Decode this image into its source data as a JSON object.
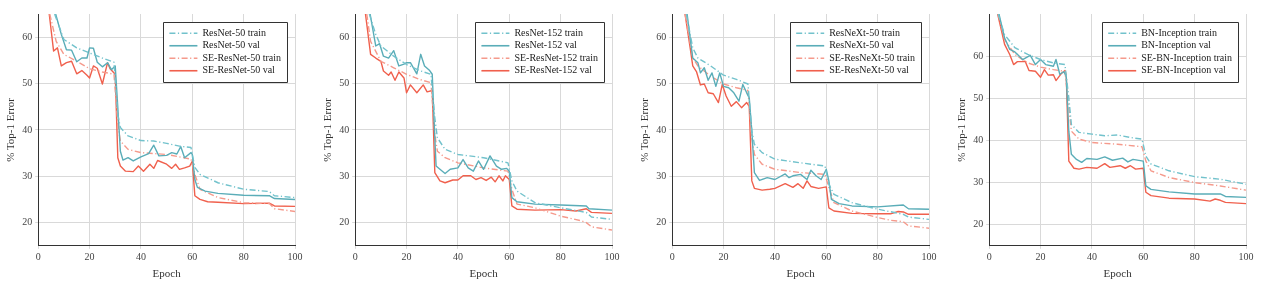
{
  "chart_data": [
    {
      "type": "line",
      "xlabel": "Epoch",
      "ylabel": "% Top-1 Error",
      "xlim": [
        0,
        100
      ],
      "xticks": [
        0,
        20,
        40,
        60,
        80,
        100
      ],
      "ylim": [
        15,
        65
      ],
      "yticks": [
        20,
        30,
        40,
        50,
        60
      ],
      "grid": true,
      "legend": "top right",
      "marker": "none",
      "series": [
        {
          "name": "ResNet-50 train",
          "color": "#72c2cc",
          "line_style": "dashed",
          "x": [
            6.4,
            10,
            15,
            20,
            25,
            29.5,
            31,
            32,
            35,
            40,
            45,
            50,
            55,
            59.5,
            61,
            63,
            70,
            80,
            90,
            92,
            100
          ],
          "values": [
            65,
            59.5,
            57.7,
            56.6,
            55.5,
            54.6,
            43.3,
            40.5,
            38.7,
            37.7,
            37.6,
            37.1,
            36.5,
            36.2,
            31.9,
            30.4,
            28.6,
            27.2,
            26.7,
            25.8,
            25.4
          ]
        },
        {
          "name": "ResNet-50 val",
          "color": "#5aadb8",
          "line_style": "solid",
          "x": [
            6.8,
            9,
            11,
            13,
            15,
            17,
            19,
            20,
            21.5,
            23,
            25,
            27,
            28.5,
            30,
            31,
            32,
            33,
            35,
            37,
            40,
            43,
            45,
            47,
            50,
            52,
            54,
            55.5,
            57,
            59.5,
            60,
            61,
            62,
            65,
            70,
            80,
            90,
            92,
            100
          ],
          "values": [
            65,
            60.6,
            57.3,
            57.2,
            54.7,
            55.5,
            55.5,
            57.7,
            57.6,
            54.6,
            53.6,
            54.5,
            53,
            53.8,
            44.8,
            35.4,
            33.5,
            34,
            33.3,
            34.2,
            34.9,
            36.7,
            34.4,
            34.5,
            35.1,
            34.8,
            36.4,
            34,
            35.1,
            34.7,
            29.3,
            27.6,
            26.8,
            26.3,
            25.9,
            25.8,
            25.2,
            25
          ]
        },
        {
          "name": "SE-ResNet-50 train",
          "color": "#f59a8c",
          "line_style": "dashed",
          "x": [
            4.5,
            7,
            10,
            15,
            20,
            25,
            29.5,
            31,
            32,
            35,
            40,
            50,
            59.5,
            61,
            63,
            70,
            80,
            90,
            92,
            100
          ],
          "values": [
            65,
            59.1,
            56.3,
            54.8,
            53.2,
            52.5,
            52,
            41.2,
            37.6,
            35.8,
            35.1,
            34.7,
            33.7,
            30.4,
            27.2,
            25.4,
            24.3,
            24.1,
            23,
            22.4
          ]
        },
        {
          "name": "SE-ResNet-50 val",
          "color": "#f0604d",
          "line_style": "solid",
          "x": [
            4.3,
            6,
            7.5,
            9,
            11,
            13,
            15,
            17,
            19,
            20,
            21.5,
            23,
            25,
            27,
            28,
            30,
            31,
            32,
            34,
            37,
            39,
            41,
            43.5,
            45,
            46.5,
            50,
            52,
            53.5,
            55,
            57,
            59,
            60,
            61,
            63,
            66,
            70,
            80,
            90,
            92,
            100
          ],
          "values": [
            65,
            57,
            57.7,
            53.8,
            54.5,
            54.8,
            52.1,
            52.8,
            51.8,
            51.2,
            53.8,
            53.3,
            49.9,
            54.5,
            53.2,
            52,
            34,
            32.2,
            31.1,
            31,
            32.2,
            31.1,
            32.6,
            31.7,
            33.4,
            32.6,
            31.7,
            32.6,
            31.5,
            31.8,
            32.2,
            33.2,
            25.8,
            25,
            24.5,
            24.4,
            24.1,
            24.2,
            23.6,
            23.5
          ]
        }
      ]
    },
    {
      "type": "line",
      "xlabel": "Epoch",
      "ylabel": "% Top-1 Error",
      "xlim": [
        0,
        100
      ],
      "xticks": [
        0,
        20,
        40,
        60,
        80,
        100
      ],
      "ylim": [
        15,
        65
      ],
      "yticks": [
        20,
        30,
        40,
        50,
        60
      ],
      "grid": true,
      "legend": "top right",
      "marker": "none",
      "series": [
        {
          "name": "ResNet-152 train",
          "color": "#72c2cc",
          "line_style": "dashed",
          "x": [
            5.5,
            8,
            10,
            15,
            20,
            25,
            29.5,
            31,
            32,
            35,
            40,
            50,
            59.5,
            61,
            63,
            70,
            80,
            90,
            92,
            100
          ],
          "values": [
            65,
            60.6,
            58.1,
            55.9,
            54.1,
            52.8,
            52,
            42.6,
            38.3,
            35.8,
            34.7,
            34,
            32.9,
            29,
            26.8,
            24.3,
            23.2,
            22.2,
            21.2,
            20.7
          ]
        },
        {
          "name": "ResNet-152 val",
          "color": "#5aadb8",
          "line_style": "solid",
          "x": [
            5.8,
            8,
            9.5,
            11,
            13,
            15,
            17,
            19,
            20,
            21.5,
            24,
            25.5,
            27,
            29,
            30,
            31,
            31.5,
            33,
            35,
            37,
            40,
            42,
            44,
            46,
            48,
            50,
            52.5,
            55,
            57,
            59,
            60,
            61,
            63,
            70,
            80,
            90,
            91,
            100
          ],
          "values": [
            65,
            58.1,
            58.6,
            55.9,
            55.5,
            57.1,
            53.8,
            54.2,
            54.5,
            54.5,
            52.1,
            56.3,
            53.8,
            52.8,
            52,
            38.3,
            32.2,
            31.5,
            30.6,
            31.5,
            31.8,
            33.6,
            31.8,
            31.1,
            33.3,
            31.5,
            34.4,
            32.2,
            31.5,
            31.7,
            31.1,
            25.4,
            24.5,
            24,
            23.8,
            23.6,
            23,
            22.7
          ]
        },
        {
          "name": "SE-ResNet-152 train",
          "color": "#f59a8c",
          "line_style": "dashed",
          "x": [
            4.5,
            6,
            10,
            15,
            20,
            25,
            29.5,
            31,
            32,
            35,
            40,
            50,
            59.5,
            61,
            63,
            70,
            80,
            88,
            90,
            92,
            100
          ],
          "values": [
            65,
            59.1,
            54.8,
            53.4,
            52,
            50.9,
            50.2,
            39,
            35.4,
            34,
            32.9,
            31.8,
            31.1,
            27.2,
            24,
            23.2,
            21.4,
            20.4,
            20,
            19.1,
            18.4
          ]
        },
        {
          "name": "SE-ResNet-152 val",
          "color": "#f0604d",
          "line_style": "solid",
          "x": [
            4,
            6,
            8,
            10,
            11,
            13,
            14,
            15.5,
            17,
            19,
            20,
            21.5,
            24,
            26.5,
            28,
            30,
            31,
            33,
            35,
            38,
            40,
            42,
            45,
            47,
            49,
            51,
            53,
            54.5,
            56,
            57.5,
            58.5,
            60,
            61,
            63,
            70,
            80,
            86,
            90,
            92,
            100
          ],
          "values": [
            65,
            56.3,
            55.5,
            54.8,
            52.7,
            51.8,
            52.5,
            50.7,
            52.5,
            51.2,
            48,
            49.7,
            48,
            49.7,
            48.2,
            48.5,
            30.8,
            29,
            28.6,
            29.2,
            29.2,
            30.1,
            30.1,
            29.3,
            29.7,
            29.1,
            29.8,
            28.8,
            30.1,
            29,
            30.1,
            29.3,
            23.6,
            22.9,
            22.7,
            22.8,
            22.5,
            23,
            22.2,
            22
          ]
        }
      ]
    },
    {
      "type": "line",
      "xlabel": "Epoch",
      "ylabel": "% Top-1 Error",
      "xlim": [
        0,
        100
      ],
      "xticks": [
        0,
        20,
        40,
        60,
        80,
        100
      ],
      "ylim": [
        15,
        65
      ],
      "yticks": [
        20,
        30,
        40,
        50,
        60
      ],
      "grid": true,
      "legend": "top right",
      "marker": "none",
      "series": [
        {
          "name": "ResNeXt-50 train",
          "color": "#72c2cc",
          "line_style": "dashed",
          "x": [
            5.5,
            8,
            10,
            15,
            20,
            25,
            29.5,
            31,
            32,
            35,
            40,
            50,
            59.5,
            61,
            63,
            70,
            80,
            90,
            92,
            100
          ],
          "values": [
            65,
            57.7,
            55.5,
            53.8,
            51.8,
            50.9,
            49.9,
            39.8,
            36.9,
            35.1,
            33.7,
            32.9,
            32.2,
            28.3,
            26.1,
            24.3,
            22.9,
            21.8,
            21.2,
            20.7
          ]
        },
        {
          "name": "ResNeXt-50 val",
          "color": "#5aadb8",
          "line_style": "solid",
          "x": [
            5.8,
            8,
            10,
            11,
            12.5,
            14,
            15.5,
            17,
            18.5,
            20,
            22,
            24,
            26,
            27.5,
            29,
            30,
            31,
            32,
            34,
            37,
            40,
            44,
            45.5,
            47,
            50,
            52.5,
            54,
            56,
            58,
            60,
            61,
            62,
            65,
            70,
            80,
            90,
            92,
            100
          ],
          "values": [
            65,
            55.5,
            54.5,
            52.3,
            53.4,
            50.7,
            52.3,
            49.4,
            52.3,
            49.4,
            49.1,
            48,
            46.2,
            49.8,
            48,
            46.9,
            39.8,
            30.8,
            29.1,
            29.7,
            29.3,
            30.5,
            29.7,
            30.1,
            30.4,
            29.3,
            31.3,
            30.1,
            29.3,
            31.5,
            29,
            25,
            24.1,
            23.6,
            23.4,
            23.8,
            23,
            22.9
          ]
        },
        {
          "name": "SE-ResNeXt-50 train",
          "color": "#f59a8c",
          "line_style": "dashed",
          "x": [
            5,
            8,
            10,
            15,
            20,
            25,
            29.5,
            31,
            32,
            35,
            40,
            50,
            59.5,
            61,
            63,
            70,
            80,
            85,
            90,
            92,
            100
          ],
          "values": [
            65,
            55.5,
            53.8,
            51.6,
            49.9,
            49.1,
            48.5,
            38.3,
            34.7,
            32.6,
            31.5,
            30.8,
            30.4,
            27.6,
            24.3,
            22.5,
            21.1,
            20.5,
            20.2,
            19.3,
            18.8
          ]
        },
        {
          "name": "SE-ResNeXt-50 val",
          "color": "#f0604d",
          "line_style": "solid",
          "x": [
            5,
            7,
            8,
            9.5,
            11,
            12.5,
            14,
            16,
            18,
            19.5,
            21,
            23,
            25,
            27,
            29,
            30,
            31,
            32,
            35,
            38,
            40,
            44,
            47,
            49,
            51,
            52.5,
            54,
            57,
            60,
            61,
            63,
            70,
            80,
            85,
            88,
            90,
            92,
            100
          ],
          "values": [
            65,
            57.7,
            53.8,
            52.5,
            49.7,
            49.9,
            48,
            47.8,
            45.9,
            49.8,
            47.3,
            45.1,
            46.1,
            44.8,
            45.9,
            45.1,
            29,
            27.4,
            27,
            27.2,
            27.4,
            28.4,
            27.6,
            28.4,
            27.4,
            29,
            27.8,
            27.4,
            27.7,
            23.2,
            22.5,
            22,
            21.9,
            21.9,
            22.4,
            22.3,
            21.8,
            21.8
          ]
        }
      ]
    },
    {
      "type": "line",
      "xlabel": "Epoch",
      "ylabel": "% Top-1 Error",
      "xlim": [
        0,
        100
      ],
      "xticks": [
        0,
        20,
        40,
        60,
        80,
        100
      ],
      "ylim": [
        15,
        70
      ],
      "yticks": [
        20,
        30,
        40,
        50,
        60
      ],
      "grid": true,
      "legend": "top right",
      "marker": "none",
      "series": [
        {
          "name": "BN-Inception train",
          "color": "#72c2cc",
          "line_style": "dashed",
          "x": [
            3.5,
            6,
            10,
            15,
            20,
            25,
            29.5,
            31,
            32,
            35,
            40,
            45,
            50,
            55,
            59.5,
            61,
            63,
            70,
            80,
            90,
            100
          ],
          "values": [
            70,
            65.1,
            62,
            60.4,
            59.2,
            58.4,
            58,
            50.1,
            43.8,
            41.9,
            41.5,
            41.1,
            41.3,
            40.7,
            40.3,
            36.3,
            34.4,
            32.8,
            31.4,
            30.8,
            29.6
          ]
        },
        {
          "name": "BN-Inception val",
          "color": "#5aadb8",
          "line_style": "solid",
          "x": [
            3.8,
            6,
            8,
            10,
            13,
            16,
            18,
            20,
            22,
            25,
            26,
            27.5,
            29,
            30,
            31,
            32,
            34,
            36,
            38,
            42,
            45,
            48,
            52,
            54,
            56,
            60,
            61,
            63,
            70,
            80,
            90,
            92,
            100
          ],
          "values": [
            70,
            64.3,
            61.6,
            61,
            59.2,
            60.2,
            58,
            59.2,
            58,
            57.6,
            59.2,
            55.7,
            56.3,
            55.3,
            42.2,
            36.7,
            35.5,
            34.8,
            35.7,
            35.5,
            36.1,
            35.3,
            35.8,
            34.9,
            35.5,
            35.1,
            29.2,
            28.4,
            27.8,
            27.3,
            27.3,
            26.7,
            26.5
          ]
        },
        {
          "name": "SE-BN-Inception train",
          "color": "#f59a8c",
          "line_style": "dashed",
          "x": [
            3.5,
            6,
            10,
            15,
            20,
            25,
            29.5,
            31,
            32,
            35,
            40,
            50,
            59.5,
            61,
            63,
            70,
            80,
            90,
            100
          ],
          "values": [
            70,
            63.9,
            60.4,
            58.4,
            57.4,
            56.8,
            56.4,
            47.8,
            42.2,
            40.3,
            39.5,
            39.1,
            38.5,
            35.1,
            32.8,
            31.2,
            30,
            29.2,
            28.2
          ]
        },
        {
          "name": "SE-BN-Inception val",
          "color": "#f0604d",
          "line_style": "solid",
          "x": [
            3.3,
            6,
            8,
            9.5,
            11,
            13,
            14,
            15.5,
            18,
            20,
            21.5,
            23,
            25,
            26,
            28,
            29.5,
            30,
            31,
            33,
            35,
            38,
            42,
            45,
            47,
            51,
            53,
            55,
            57,
            60,
            61,
            63,
            70,
            80,
            86,
            88,
            90,
            92,
            100
          ],
          "values": [
            70,
            62.8,
            60.4,
            58,
            58.7,
            58.7,
            58.8,
            56.6,
            56.4,
            55,
            56.8,
            55.5,
            55.6,
            54.2,
            55.8,
            56.6,
            55.5,
            35.1,
            33.4,
            33.2,
            33.6,
            33.4,
            34.5,
            33.6,
            34,
            33.4,
            34,
            33.2,
            33.4,
            27.7,
            26.9,
            26.3,
            26.1,
            25.6,
            26.1,
            25.8,
            25.3,
            25
          ]
        }
      ]
    }
  ]
}
